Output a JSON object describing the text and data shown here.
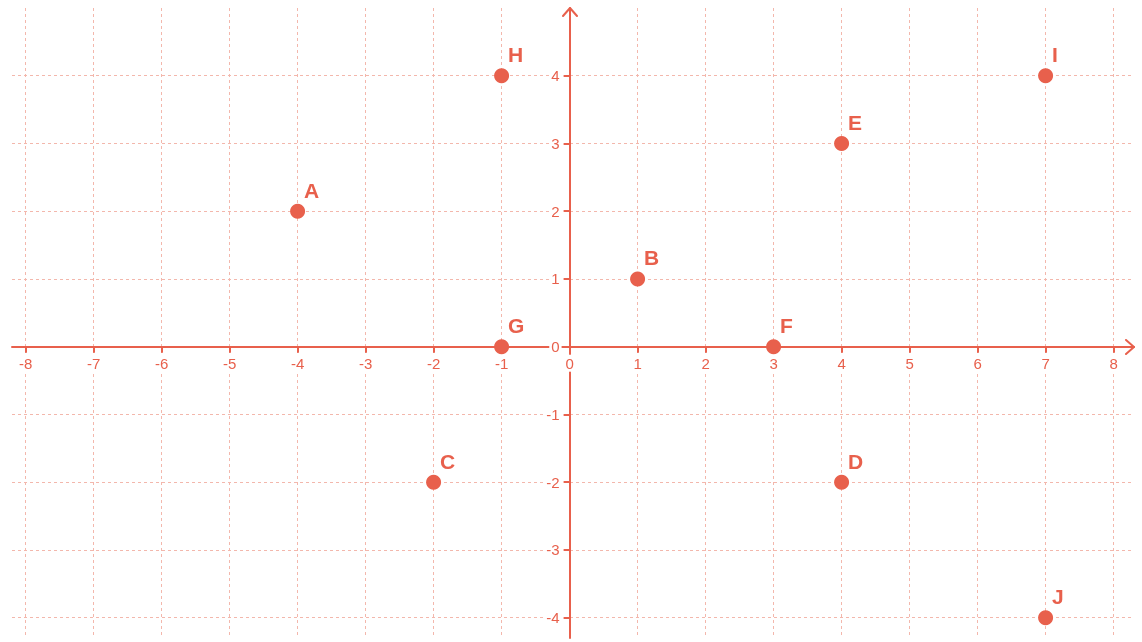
{
  "chart_data": {
    "type": "scatter",
    "series": [
      {
        "color": "#e8604c",
        "x": [
          -4,
          1,
          -2,
          4,
          4,
          3,
          -1,
          -1,
          7,
          7
        ],
        "values": [
          2,
          1,
          -2,
          -2,
          3,
          0,
          0,
          4,
          4,
          -4
        ],
        "value_labels": [
          "A",
          "B",
          "C",
          "D",
          "E",
          "F",
          "G",
          "H",
          "I",
          "J"
        ]
      }
    ],
    "xlim": [
      -8.2,
      8.3
    ],
    "ylim": [
      -4.3,
      5
    ],
    "xticks": [
      -8,
      -7,
      -6,
      -5,
      -4,
      -3,
      -2,
      -1,
      0,
      1,
      2,
      3,
      4,
      5,
      6,
      7,
      8
    ],
    "yticks": [
      -4,
      -3,
      -2,
      -1,
      0,
      1,
      2,
      3,
      4
    ],
    "grid": true,
    "marker": "circle"
  }
}
